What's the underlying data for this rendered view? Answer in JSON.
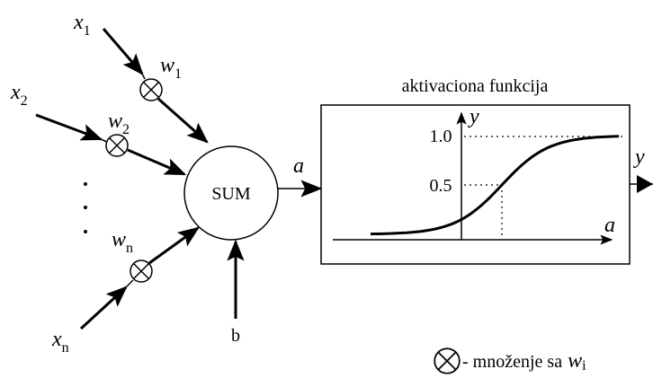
{
  "inputs": [
    {
      "symbol": "x",
      "index": "1"
    },
    {
      "symbol": "x",
      "index": "2"
    },
    {
      "symbol": "x",
      "index": "n"
    }
  ],
  "weights": [
    {
      "symbol": "w",
      "index": "1"
    },
    {
      "symbol": "w",
      "index": "2"
    },
    {
      "symbol": "w",
      "index": "n"
    }
  ],
  "sum": "SUM",
  "bias": "b",
  "sum_output": "a",
  "output": "y",
  "activation": {
    "title": "aktivaciona funkcija",
    "y_axis": "y",
    "x_axis": "a",
    "levels": [
      "1.0",
      "0.5"
    ]
  },
  "legend": {
    "text": "- množenje sa",
    "symbol": "w",
    "index": "i"
  }
}
